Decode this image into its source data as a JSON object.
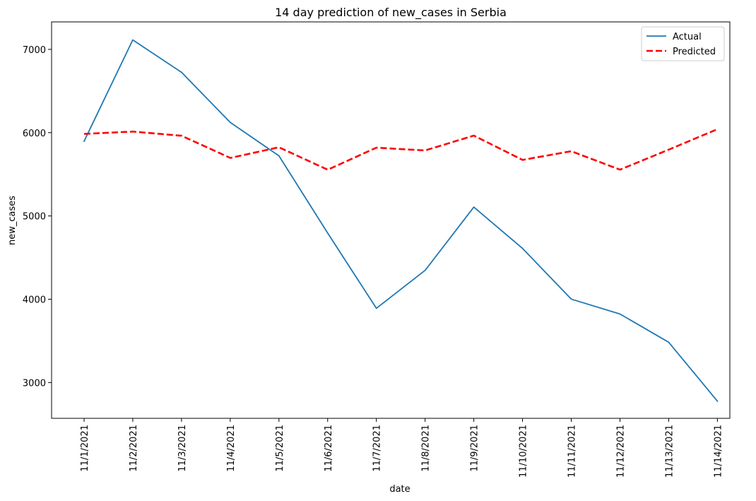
{
  "chart_data": {
    "type": "line",
    "title": "14 day prediction of new_cases in Serbia",
    "xlabel": "date",
    "ylabel": "new_cases",
    "categories": [
      "11/1/2021",
      "11/2/2021",
      "11/3/2021",
      "11/4/2021",
      "11/5/2021",
      "11/6/2021",
      "11/7/2021",
      "11/8/2021",
      "11/9/2021",
      "11/10/2021",
      "11/11/2021",
      "11/12/2021",
      "11/13/2021",
      "11/14/2021"
    ],
    "ylim": [
      2570,
      7330
    ],
    "yticks": [
      3000,
      4000,
      5000,
      6000,
      7000
    ],
    "grid": false,
    "legend_position": "top-right",
    "series": [
      {
        "name": "Actual",
        "color": "#1f77b4",
        "style": "solid",
        "values": [
          5897,
          7114,
          6725,
          6123,
          5722,
          4794,
          3891,
          4347,
          5106,
          4610,
          4001,
          3822,
          3484,
          2776
        ]
      },
      {
        "name": "Predicted",
        "color": "#ff0000",
        "style": "dashed",
        "values": [
          5985,
          6013,
          5963,
          5697,
          5825,
          5555,
          5820,
          5787,
          5965,
          5673,
          5777,
          5556,
          5796,
          6042
        ]
      }
    ]
  }
}
